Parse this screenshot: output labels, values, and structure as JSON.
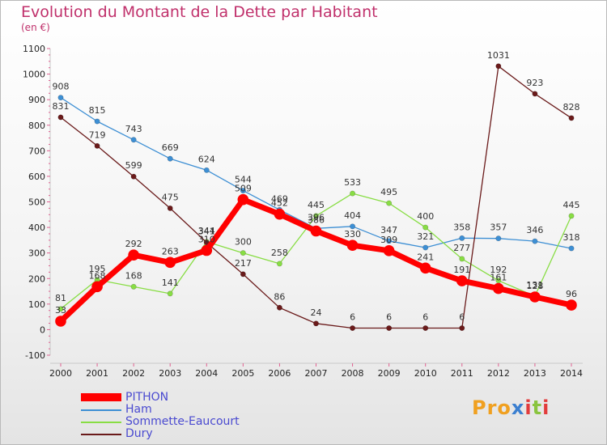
{
  "header": {
    "title": "Evolution du Montant de la Dette par Habitant",
    "unit": "(en €)"
  },
  "logo": "Proxiti",
  "chart_data": {
    "type": "line",
    "title": "Evolution du Montant de la Dette par Habitant",
    "subtitle": "(en €)",
    "xlabel": "",
    "ylabel": "",
    "x": [
      "2000",
      "2001",
      "2002",
      "2003",
      "2004",
      "2005",
      "2006",
      "2007",
      "2008",
      "2009",
      "2010",
      "2011",
      "2012",
      "2013",
      "2014"
    ],
    "ylim": [
      -100,
      1100
    ],
    "yticks": [
      -100,
      0,
      100,
      200,
      300,
      400,
      500,
      600,
      700,
      800,
      900,
      1000,
      1100
    ],
    "grid": false,
    "legend": "bottom-left",
    "series": [
      {
        "name": "PITHON",
        "color": "#ff0000",
        "values": [
          33,
          168,
          292,
          263,
          310,
          509,
          452,
          386,
          330,
          309,
          241,
          191,
          161,
          128,
          96
        ]
      },
      {
        "name": "Ham",
        "color": "#3d8fd4",
        "values": [
          908,
          815,
          743,
          669,
          624,
          544,
          469,
          396,
          404,
          347,
          321,
          358,
          357,
          346,
          318
        ]
      },
      {
        "name": "Sommette-Eaucourt",
        "color": "#88dd44",
        "values": [
          81,
          195,
          168,
          141,
          344,
          300,
          258,
          445,
          533,
          495,
          400,
          277,
          192,
          131,
          445
        ]
      },
      {
        "name": "Dury",
        "color": "#6a1a1a",
        "values": [
          831,
          719,
          599,
          475,
          341,
          217,
          86,
          24,
          6,
          6,
          6,
          6,
          1031,
          923,
          828
        ]
      }
    ]
  }
}
